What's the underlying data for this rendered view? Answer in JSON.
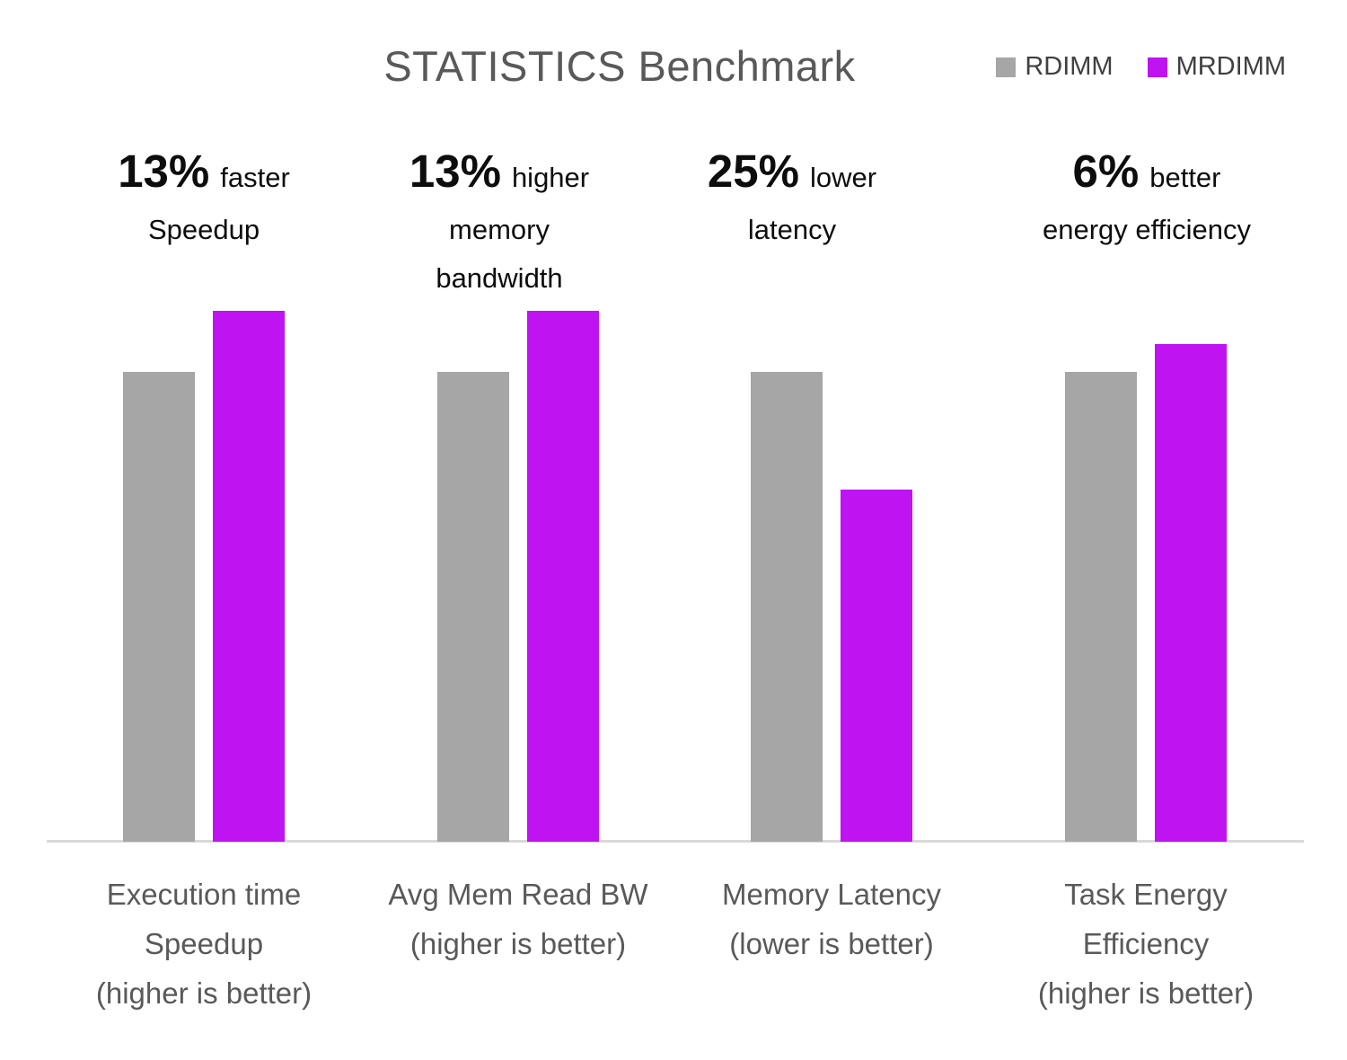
{
  "title": "STATISTICS Benchmark",
  "colors": {
    "rdimm": "#a6a6a6",
    "mrdimm": "#c013f2",
    "axis_line": "#d9d9d9",
    "title_text": "#595959",
    "category_text": "#595959",
    "annotation_text": "#0d0d0d",
    "legend_text": "#404040"
  },
  "chart_data": {
    "type": "bar",
    "title": "STATISTICS Benchmark",
    "grid": false,
    "legend_position": "top-right",
    "ylim": [
      0,
      1.2
    ],
    "y_axis_visible": false,
    "categories": [
      [
        "Execution time",
        "Speedup",
        "(higher is better)"
      ],
      [
        "Avg Mem Read BW",
        "(higher is better)"
      ],
      [
        "Memory Latency",
        "(lower is better)"
      ],
      [
        "Task Energy",
        "Efficiency",
        "(higher is better)"
      ]
    ],
    "series": [
      {
        "name": "RDIMM",
        "color": "#a6a6a6",
        "values": [
          1.0,
          1.0,
          1.0,
          1.0
        ]
      },
      {
        "name": "MRDIMM",
        "color": "#c013f2",
        "values": [
          1.13,
          1.13,
          0.75,
          1.06
        ]
      }
    ],
    "annotations": [
      {
        "pct": "13%",
        "tail": "faster",
        "lines": [
          "Speedup"
        ]
      },
      {
        "pct": "13%",
        "tail": "higher",
        "lines": [
          "memory",
          "bandwidth"
        ]
      },
      {
        "pct": "25%",
        "tail": "lower",
        "lines": [
          "latency"
        ]
      },
      {
        "pct": "6%",
        "tail": "better",
        "lines": [
          "energy efficiency"
        ]
      }
    ]
  }
}
